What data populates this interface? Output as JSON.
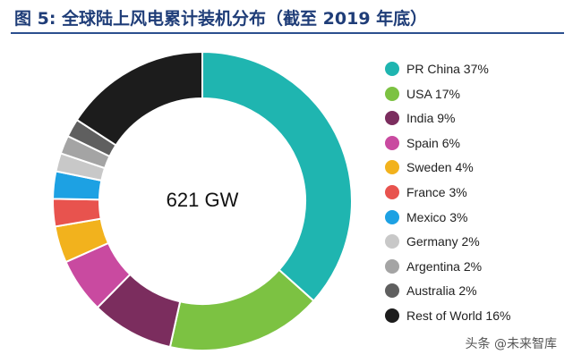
{
  "title": "图 5: 全球陆上风电累计装机分布（截至 2019 年底）",
  "watermark": "头条 @未来智库",
  "chart_data": {
    "type": "pie",
    "variant": "donut",
    "center_label": "621 GW",
    "legend_position": "right",
    "slices": [
      {
        "label": "PR China",
        "value": 37,
        "display": "PR China 37%",
        "color": "#1fb5b0"
      },
      {
        "label": "USA",
        "value": 17,
        "display": "USA 17%",
        "color": "#7cc242"
      },
      {
        "label": "India",
        "value": 9,
        "display": "India 9%",
        "color": "#7b2d5e"
      },
      {
        "label": "Spain",
        "value": 6,
        "display": "Spain 6%",
        "color": "#c94aa0"
      },
      {
        "label": "Sweden",
        "value": 4,
        "display": "Sweden 4%",
        "color": "#f2b21d"
      },
      {
        "label": "France",
        "value": 3,
        "display": "France 3%",
        "color": "#e8534e"
      },
      {
        "label": "Mexico",
        "value": 3,
        "display": "Mexico 3%",
        "color": "#1da1e3"
      },
      {
        "label": "Germany",
        "value": 2,
        "display": "Germany 2%",
        "color": "#c8c8c8"
      },
      {
        "label": "Argentina",
        "value": 2,
        "display": "Argentina 2%",
        "color": "#a4a4a4"
      },
      {
        "label": "Australia",
        "value": 2,
        "display": "Australia 2%",
        "color": "#5f5f5f"
      },
      {
        "label": "Rest of World",
        "value": 16,
        "display": "Rest of World 16%",
        "color": "#1c1c1c"
      }
    ]
  }
}
